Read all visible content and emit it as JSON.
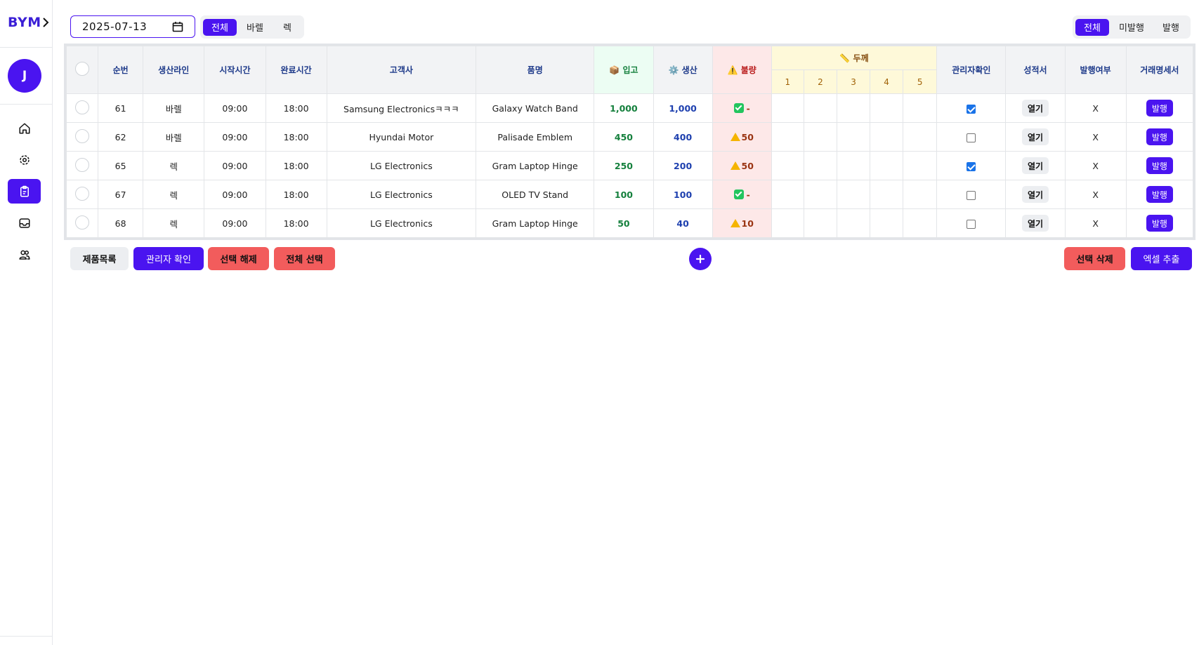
{
  "sidebar": {
    "brand": "BYM",
    "avatar_initial": "J",
    "nav": [
      {
        "name": "home-icon"
      },
      {
        "name": "gear-icon"
      },
      {
        "name": "clipboard-icon",
        "active": true
      },
      {
        "name": "inbox-icon"
      },
      {
        "name": "users-icon"
      }
    ]
  },
  "toolbar": {
    "date": "2025-07-13",
    "line_filter": [
      "전체",
      "바렐",
      "렉"
    ],
    "line_filter_selected": "전체",
    "issue_filter": [
      "전체",
      "미발행",
      "발행"
    ],
    "issue_filter_selected": "전체"
  },
  "table": {
    "headers": {
      "seq": "순번",
      "line": "생산라인",
      "start": "시작시간",
      "end": "완료시간",
      "customer": "고객사",
      "product": "품명",
      "incoming": "📦 입고",
      "production": "⚙️ 생산",
      "defect": "⚠️ 불량",
      "thickness": "📏 두께",
      "thickness_cols": [
        "1",
        "2",
        "3",
        "4",
        "5"
      ],
      "admin_check": "관리자확인",
      "report": "성적서",
      "issued": "발행여부",
      "invoice": "거래명세서"
    },
    "rows": [
      {
        "seq": "61",
        "line": "바렐",
        "start": "09:00",
        "end": "18:00",
        "customer": "Samsung Electronicsㅋㅋㅋ",
        "product": "Galaxy Watch Band",
        "incoming": "1,000",
        "production": "1,000",
        "defect_ok": true,
        "defect": "-",
        "admin_checked": true,
        "report": "열기",
        "issued": "X",
        "invoice": "발행"
      },
      {
        "seq": "62",
        "line": "바렐",
        "start": "09:00",
        "end": "18:00",
        "customer": "Hyundai Motor",
        "product": "Palisade Emblem",
        "incoming": "450",
        "production": "400",
        "defect_ok": false,
        "defect": "50",
        "admin_checked": false,
        "report": "열기",
        "issued": "X",
        "invoice": "발행"
      },
      {
        "seq": "65",
        "line": "렉",
        "start": "09:00",
        "end": "18:00",
        "customer": "LG Electronics",
        "product": "Gram Laptop Hinge",
        "incoming": "250",
        "production": "200",
        "defect_ok": false,
        "defect": "50",
        "admin_checked": true,
        "report": "열기",
        "issued": "X",
        "invoice": "발행"
      },
      {
        "seq": "67",
        "line": "렉",
        "start": "09:00",
        "end": "18:00",
        "customer": "LG Electronics",
        "product": "OLED TV Stand",
        "incoming": "100",
        "production": "100",
        "defect_ok": true,
        "defect": "-",
        "admin_checked": false,
        "report": "열기",
        "issued": "X",
        "invoice": "발행"
      },
      {
        "seq": "68",
        "line": "렉",
        "start": "09:00",
        "end": "18:00",
        "customer": "LG Electronics",
        "product": "Gram Laptop Hinge",
        "incoming": "50",
        "production": "40",
        "defect_ok": false,
        "defect": "10",
        "admin_checked": false,
        "report": "열기",
        "issued": "X",
        "invoice": "발행"
      }
    ]
  },
  "actions": {
    "product_list": "제품목록",
    "admin_confirm": "관리자 확인",
    "deselect": "선택 해제",
    "select_all": "전체 선택",
    "delete_selected": "선택 삭제",
    "excel_export": "엑셀 추출"
  },
  "colors": {
    "accent": "#4a14f0",
    "danger": "#f25c5c"
  }
}
